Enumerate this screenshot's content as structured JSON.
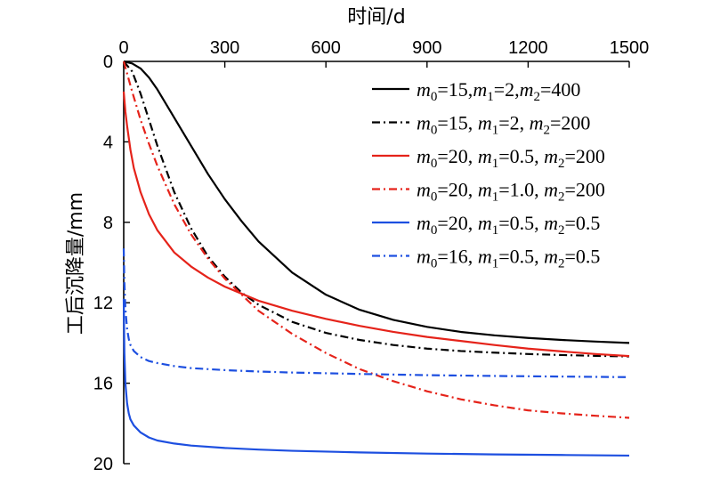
{
  "chart_data": {
    "type": "line",
    "xlabel": "时间/d",
    "ylabel": "工后沉降量/mm",
    "xlim": [
      0,
      1500
    ],
    "ylim": [
      0,
      20
    ],
    "y_inverted": true,
    "x_axis_position": "top",
    "xticks": [
      0,
      300,
      600,
      900,
      1200,
      1500
    ],
    "yticks": [
      0,
      4,
      8,
      12,
      16,
      20
    ],
    "legend_position": "top-right",
    "series": [
      {
        "name": "m0=15,m1=2,m2=400",
        "label_parts": {
          "m0": "15",
          "m1": "2",
          "m2": "400",
          "sep": ","
        },
        "color": "#000000",
        "style": "solid",
        "x": [
          0,
          25,
          50,
          75,
          100,
          150,
          200,
          250,
          300,
          350,
          400,
          500,
          600,
          700,
          800,
          900,
          1000,
          1100,
          1200,
          1300,
          1400,
          1500
        ],
        "y": [
          0,
          0.1,
          0.35,
          0.8,
          1.4,
          2.8,
          4.2,
          5.6,
          6.85,
          7.95,
          8.95,
          10.5,
          11.6,
          12.35,
          12.85,
          13.2,
          13.45,
          13.62,
          13.75,
          13.85,
          13.93,
          14.0
        ]
      },
      {
        "name": "m0=15, m1=2, m2=200",
        "label_parts": {
          "m0": "15",
          "m1": "2",
          "m2": "200",
          "sep": ", "
        },
        "color": "#000000",
        "style": "dashdot",
        "x": [
          0,
          25,
          50,
          75,
          100,
          150,
          200,
          250,
          300,
          350,
          400,
          500,
          600,
          700,
          800,
          900,
          1000,
          1100,
          1200,
          1300,
          1400,
          1500
        ],
        "y": [
          0,
          0.5,
          1.6,
          2.9,
          4.2,
          6.5,
          8.3,
          9.7,
          10.7,
          11.5,
          12.1,
          12.95,
          13.5,
          13.85,
          14.1,
          14.28,
          14.4,
          14.48,
          14.55,
          14.6,
          14.64,
          14.67
        ]
      },
      {
        "name": "m0=20, m1=0.5, m2=200",
        "label_parts": {
          "m0": "20",
          "m1": "0.5",
          "m2": "200",
          "sep": ", "
        },
        "color": "#e5231a",
        "style": "solid",
        "x": [
          0,
          5,
          10,
          20,
          30,
          50,
          75,
          100,
          150,
          200,
          250,
          300,
          400,
          500,
          600,
          700,
          800,
          900,
          1000,
          1100,
          1200,
          1300,
          1400,
          1500
        ],
        "y": [
          1.5,
          2.5,
          3.2,
          4.4,
          5.3,
          6.5,
          7.6,
          8.4,
          9.5,
          10.2,
          10.75,
          11.2,
          11.9,
          12.4,
          12.8,
          13.15,
          13.45,
          13.7,
          13.9,
          14.1,
          14.28,
          14.42,
          14.55,
          14.65
        ]
      },
      {
        "name": "m0=20, m1=1.0, m2=200",
        "label_parts": {
          "m0": "20",
          "m1": "1.0",
          "m2": "200",
          "sep": ", "
        },
        "color": "#e5231a",
        "style": "dashdot",
        "x": [
          0,
          10,
          25,
          50,
          75,
          100,
          150,
          200,
          250,
          300,
          400,
          500,
          600,
          700,
          800,
          900,
          1000,
          1100,
          1200,
          1300,
          1400,
          1500
        ],
        "y": [
          0,
          0.6,
          1.5,
          2.9,
          4.1,
          5.2,
          7.1,
          8.6,
          9.8,
          10.8,
          12.4,
          13.55,
          14.5,
          15.3,
          15.9,
          16.4,
          16.8,
          17.1,
          17.35,
          17.5,
          17.62,
          17.72
        ]
      },
      {
        "name": "m0=20, m1=0.5, m2=0.5",
        "label_parts": {
          "m0": "20",
          "m1": "0.5",
          "m2": "0.5",
          "sep": ", "
        },
        "color": "#1d4fe0",
        "style": "solid",
        "x": [
          0,
          2,
          5,
          10,
          15,
          20,
          30,
          50,
          75,
          100,
          150,
          200,
          300,
          400,
          500,
          700,
          900,
          1100,
          1300,
          1500
        ],
        "y": [
          11.8,
          14.5,
          16.0,
          17.0,
          17.5,
          17.8,
          18.1,
          18.45,
          18.7,
          18.85,
          19.0,
          19.1,
          19.22,
          19.3,
          19.36,
          19.44,
          19.5,
          19.54,
          19.57,
          19.6
        ]
      },
      {
        "name": "m0=16, m1=0.5, m2=0.5",
        "label_parts": {
          "m0": "16",
          "m1": "0.5",
          "m2": "0.5",
          "sep": ", "
        },
        "color": "#1d4fe0",
        "style": "dashdot",
        "x": [
          0,
          2,
          5,
          10,
          15,
          20,
          30,
          50,
          75,
          100,
          150,
          200,
          300,
          400,
          500,
          700,
          900,
          1100,
          1300,
          1500
        ],
        "y": [
          9.3,
          11.0,
          12.3,
          13.3,
          13.8,
          14.1,
          14.4,
          14.7,
          14.9,
          15.0,
          15.15,
          15.25,
          15.35,
          15.42,
          15.47,
          15.54,
          15.6,
          15.64,
          15.67,
          15.7
        ]
      }
    ]
  }
}
